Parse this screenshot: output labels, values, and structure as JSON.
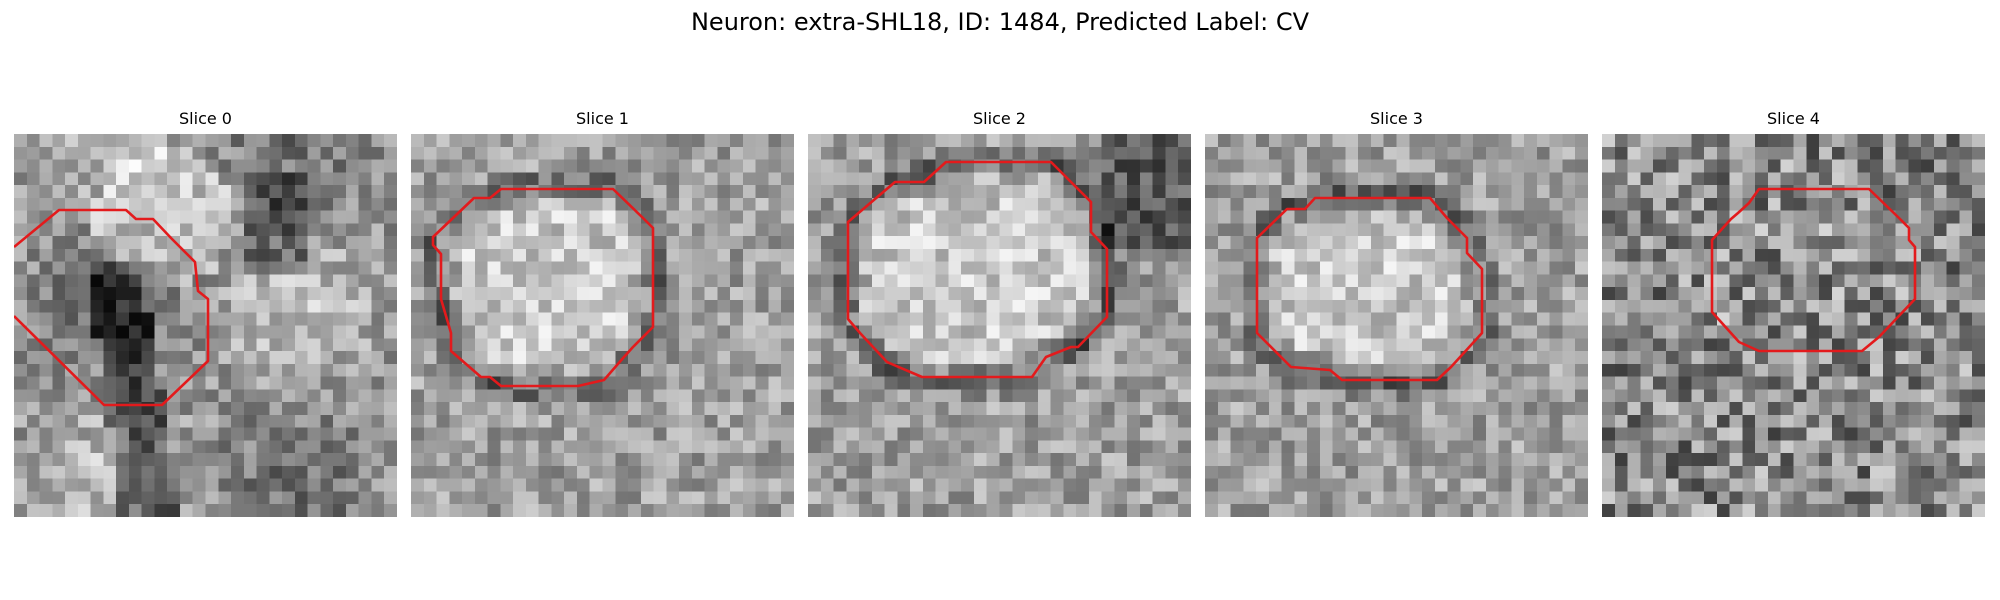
{
  "figure": {
    "title": "Neuron: extra-SHL18, ID: 1484, Predicted Label: CV"
  },
  "colors": {
    "contour": "#e31a1c"
  },
  "slices": [
    {
      "title": "Slice 0"
    },
    {
      "title": "Slice 1"
    },
    {
      "title": "Slice 2"
    },
    {
      "title": "Slice 3"
    },
    {
      "title": "Slice 4"
    }
  ]
}
